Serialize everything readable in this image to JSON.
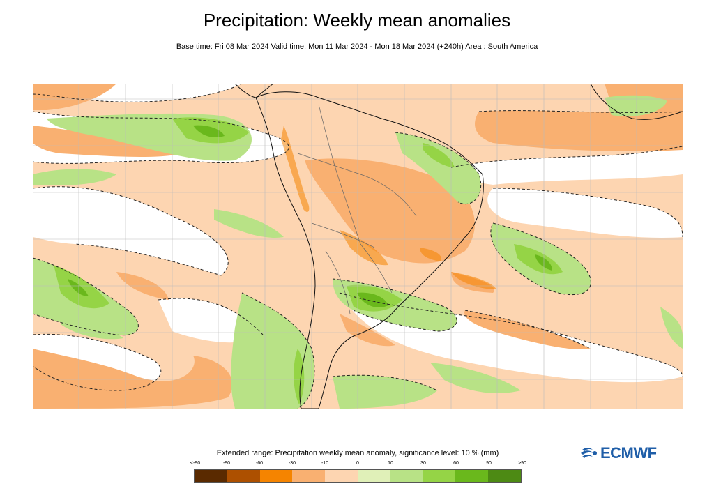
{
  "header": {
    "title": "Precipitation: Weekly mean anomalies",
    "subtitle": "Base time: Fri 08 Mar 2024 Valid time: Mon 11 Mar 2024 - Mon 18 Mar 2024 (+240h) Area : South America"
  },
  "map": {
    "region": "South America",
    "projection_grid": "lat-lon graticule",
    "significance_contour": "dashed"
  },
  "legend": {
    "title": "Extended range: Precipitation weekly mean anomaly, significance level: 10 % (mm)",
    "ticks": [
      "<-90",
      "-90",
      "-60",
      "-30",
      "-10",
      "0",
      "10",
      "30",
      "60",
      "90",
      ">90"
    ],
    "colors": [
      "#5a2a00",
      "#ad5000",
      "#f58400",
      "#f9b071",
      "#fdd5b1",
      "#e0f0b8",
      "#b8e286",
      "#95d446",
      "#6ab81c",
      "#4d8a14"
    ]
  },
  "logo": {
    "text": "ECMWF",
    "color": "#1f5ea8",
    "icon": "ecmwf-logo-icon"
  }
}
